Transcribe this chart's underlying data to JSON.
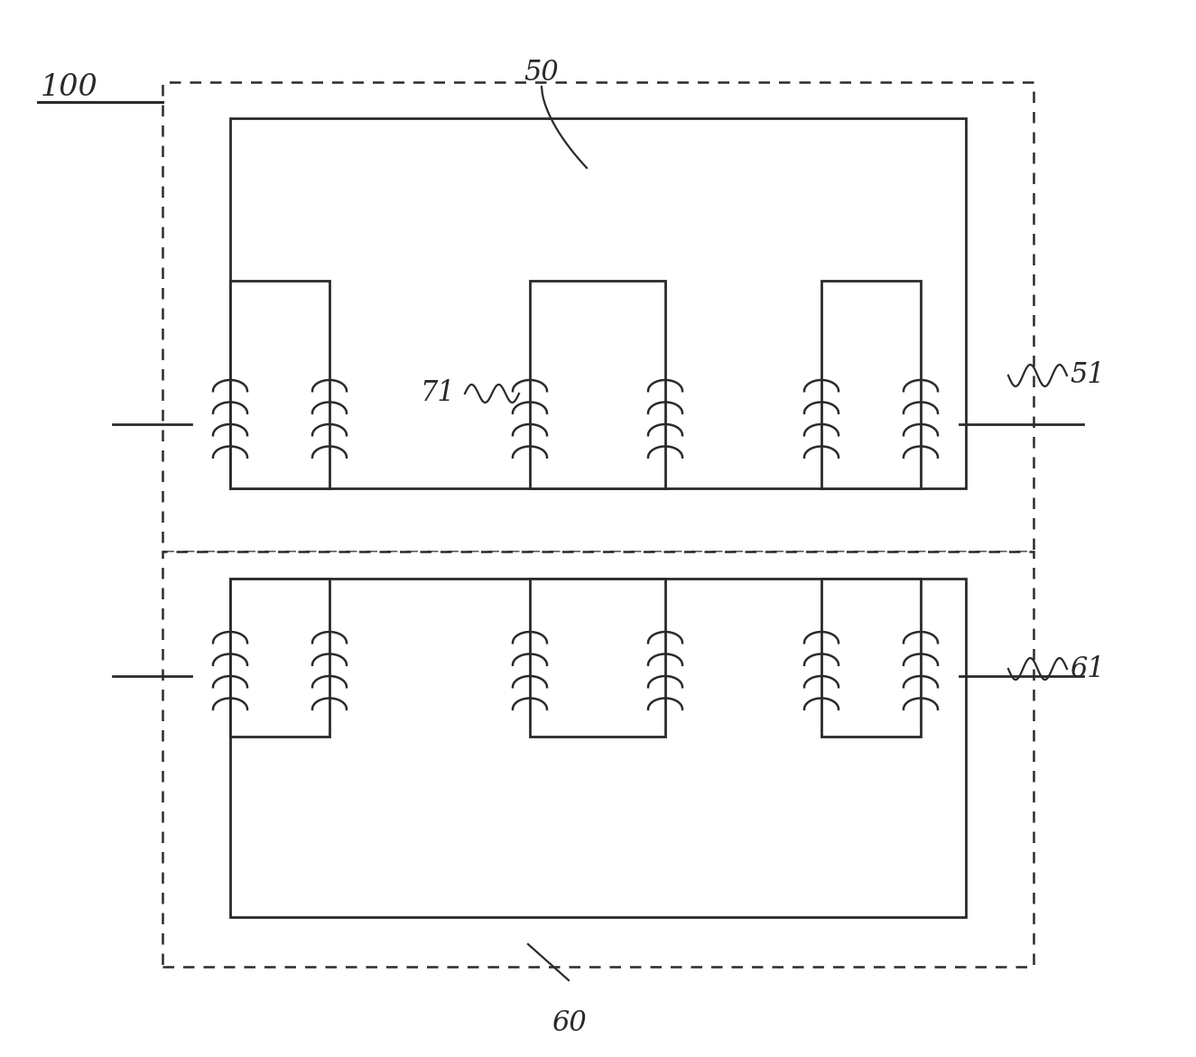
{
  "bg_color": "#ffffff",
  "line_color": "#2a2a2a",
  "fig_width": 13.25,
  "fig_height": 11.71,
  "label_100": "100",
  "label_50": "50",
  "label_51": "51",
  "label_60": "60",
  "label_61": "61",
  "label_71": "71"
}
